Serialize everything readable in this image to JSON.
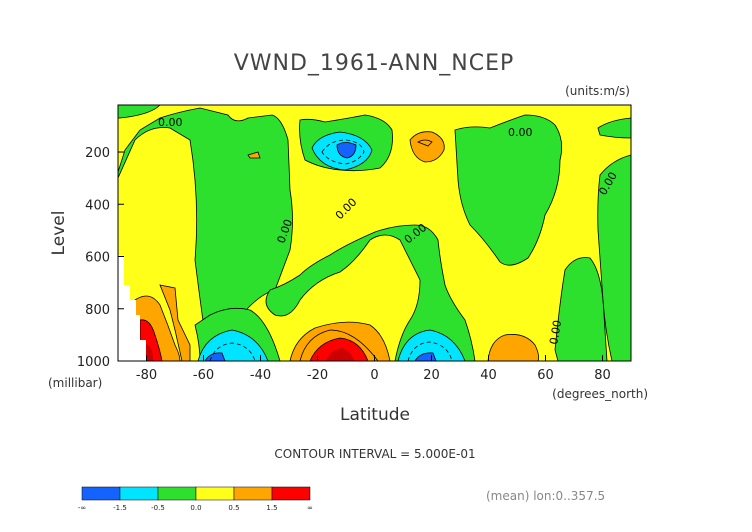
{
  "chart_data": {
    "type": "heatmap",
    "title": "VWND_1961-ANN_NCEP",
    "units": "(units:m/s)",
    "xlabel": "Latitude",
    "x_units": "(degrees_north)",
    "ylabel": "Level",
    "y_units": "(millibar)",
    "x_ticks": [
      "-80",
      "-60",
      "-40",
      "-20",
      "0",
      "20",
      "40",
      "60",
      "80"
    ],
    "y_ticks": [
      "200",
      "400",
      "600",
      "800",
      "1000"
    ],
    "xlim": [
      -90,
      90
    ],
    "ylim": [
      1000,
      10
    ],
    "contour_interval_text": "CONTOUR INTERVAL = 5.000E-01",
    "contour_labels": [
      "0.00",
      "0.00",
      "0.00",
      "0.00",
      "0.00",
      "0.00",
      "0.00",
      "0.00"
    ],
    "mean_text": "(mean) lon:0..357.5",
    "colorbar": {
      "labels": [
        "-∞",
        "-1.5",
        "-0.5",
        "0.0",
        "0.5",
        "1.5",
        "∞"
      ],
      "colors": [
        "#1463ff",
        "#00e5ff",
        "#2ee02e",
        "#ffff1a",
        "#ffa500",
        "#ff0000"
      ]
    }
  },
  "colors": {
    "strong_neg": "#1463ff",
    "neg": "#00e5ff",
    "weak_neg": "#2ee02e",
    "weak_pos": "#ffff1a",
    "pos": "#ffa500",
    "strong_pos": "#ff0000",
    "deep_red": "#cc0000"
  }
}
